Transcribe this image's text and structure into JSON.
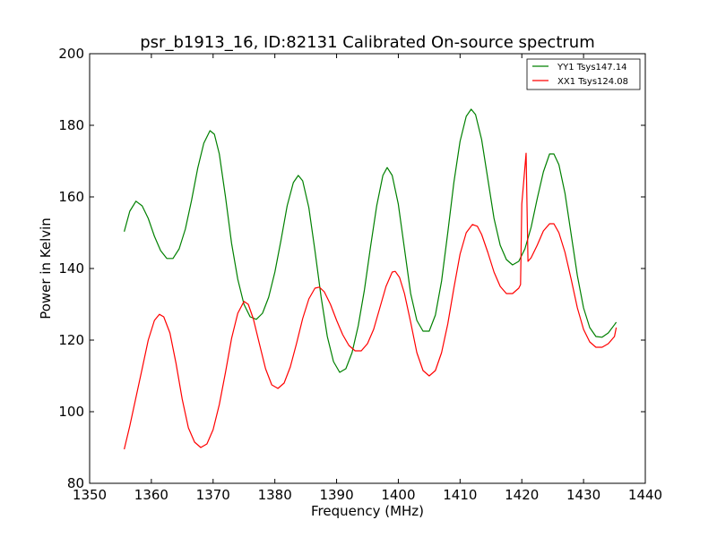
{
  "chart_data": {
    "type": "line",
    "title": "psr_b1913_16, ID:82131 Calibrated On-source spectrum",
    "xlabel": "Frequency (MHz)",
    "ylabel": "Power in Kelvin",
    "xlim": [
      1350,
      1440
    ],
    "ylim": [
      80,
      200
    ],
    "xticks": [
      1350,
      1360,
      1370,
      1380,
      1390,
      1400,
      1410,
      1420,
      1430,
      1440
    ],
    "yticks": [
      80,
      100,
      120,
      140,
      160,
      180,
      200
    ],
    "grid": false,
    "legend_position": "top-right",
    "series": [
      {
        "name": "YY1 Tsys147.14",
        "color": "#008000",
        "points": [
          [
            1355.6,
            150.3
          ],
          [
            1356.5,
            156.0
          ],
          [
            1357.5,
            158.8
          ],
          [
            1358.5,
            157.5
          ],
          [
            1359.5,
            154.0
          ],
          [
            1360.5,
            149.0
          ],
          [
            1361.5,
            145.0
          ],
          [
            1362.5,
            142.8
          ],
          [
            1363.5,
            142.8
          ],
          [
            1364.5,
            145.5
          ],
          [
            1365.5,
            151.0
          ],
          [
            1366.5,
            159.0
          ],
          [
            1367.5,
            168.0
          ],
          [
            1368.5,
            175.0
          ],
          [
            1369.5,
            178.5
          ],
          [
            1370.2,
            177.5
          ],
          [
            1371.0,
            172.0
          ],
          [
            1372.0,
            160.0
          ],
          [
            1373.0,
            147.0
          ],
          [
            1374.0,
            137.0
          ],
          [
            1375.0,
            130.0
          ],
          [
            1376.0,
            126.5
          ],
          [
            1377.0,
            125.8
          ],
          [
            1378.0,
            127.5
          ],
          [
            1379.0,
            132.0
          ],
          [
            1380.0,
            139.0
          ],
          [
            1381.0,
            148.0
          ],
          [
            1382.0,
            157.5
          ],
          [
            1383.0,
            164.0
          ],
          [
            1383.8,
            166.0
          ],
          [
            1384.5,
            164.5
          ],
          [
            1385.5,
            157.0
          ],
          [
            1386.5,
            145.0
          ],
          [
            1387.5,
            132.0
          ],
          [
            1388.5,
            121.0
          ],
          [
            1389.5,
            114.0
          ],
          [
            1390.5,
            111.0
          ],
          [
            1391.5,
            112.0
          ],
          [
            1392.5,
            116.5
          ],
          [
            1393.5,
            124.0
          ],
          [
            1394.5,
            134.0
          ],
          [
            1395.5,
            146.0
          ],
          [
            1396.5,
            157.5
          ],
          [
            1397.5,
            166.0
          ],
          [
            1398.2,
            168.2
          ],
          [
            1399.0,
            166.0
          ],
          [
            1400.0,
            158.0
          ],
          [
            1401.0,
            145.5
          ],
          [
            1402.0,
            133.0
          ],
          [
            1403.0,
            125.5
          ],
          [
            1404.0,
            122.5
          ],
          [
            1405.0,
            122.5
          ],
          [
            1406.0,
            127.0
          ],
          [
            1407.0,
            136.5
          ],
          [
            1408.0,
            150.0
          ],
          [
            1409.0,
            164.0
          ],
          [
            1410.0,
            175.5
          ],
          [
            1411.0,
            182.5
          ],
          [
            1411.8,
            184.5
          ],
          [
            1412.5,
            183.0
          ],
          [
            1413.5,
            176.0
          ],
          [
            1414.5,
            165.0
          ],
          [
            1415.5,
            154.0
          ],
          [
            1416.5,
            146.5
          ],
          [
            1417.5,
            142.5
          ],
          [
            1418.5,
            141.0
          ],
          [
            1419.5,
            142.0
          ],
          [
            1420.5,
            145.5
          ],
          [
            1421.5,
            151.5
          ],
          [
            1422.5,
            159.5
          ],
          [
            1423.5,
            167.0
          ],
          [
            1424.5,
            172.0
          ],
          [
            1425.2,
            172.0
          ],
          [
            1426.0,
            169.0
          ],
          [
            1427.0,
            161.0
          ],
          [
            1428.0,
            149.5
          ],
          [
            1429.0,
            138.0
          ],
          [
            1430.0,
            129.0
          ],
          [
            1431.0,
            123.5
          ],
          [
            1432.0,
            121.0
          ],
          [
            1433.0,
            120.8
          ],
          [
            1434.0,
            122.0
          ],
          [
            1435.0,
            124.3
          ],
          [
            1435.3,
            125.0
          ]
        ]
      },
      {
        "name": "XX1 Tsys124.08",
        "color": "#ff0000",
        "points": [
          [
            1355.6,
            89.5
          ],
          [
            1356.5,
            96.0
          ],
          [
            1357.5,
            104.0
          ],
          [
            1358.5,
            112.0
          ],
          [
            1359.5,
            120.0
          ],
          [
            1360.5,
            125.5
          ],
          [
            1361.3,
            127.2
          ],
          [
            1362.0,
            126.5
          ],
          [
            1363.0,
            122.0
          ],
          [
            1364.0,
            113.5
          ],
          [
            1365.0,
            103.5
          ],
          [
            1366.0,
            95.5
          ],
          [
            1367.0,
            91.5
          ],
          [
            1368.0,
            90.0
          ],
          [
            1369.0,
            91.0
          ],
          [
            1370.0,
            95.0
          ],
          [
            1371.0,
            102.0
          ],
          [
            1372.0,
            111.0
          ],
          [
            1373.0,
            120.5
          ],
          [
            1374.0,
            127.5
          ],
          [
            1375.0,
            130.8
          ],
          [
            1375.7,
            130.0
          ],
          [
            1376.5,
            126.0
          ],
          [
            1377.5,
            119.0
          ],
          [
            1378.5,
            112.0
          ],
          [
            1379.5,
            107.5
          ],
          [
            1380.5,
            106.5
          ],
          [
            1381.5,
            108.0
          ],
          [
            1382.5,
            112.5
          ],
          [
            1383.5,
            119.0
          ],
          [
            1384.5,
            126.0
          ],
          [
            1385.5,
            131.5
          ],
          [
            1386.5,
            134.5
          ],
          [
            1387.2,
            134.8
          ],
          [
            1388.0,
            133.5
          ],
          [
            1389.0,
            130.0
          ],
          [
            1390.0,
            125.5
          ],
          [
            1391.0,
            121.5
          ],
          [
            1392.0,
            118.5
          ],
          [
            1393.0,
            117.0
          ],
          [
            1394.0,
            117.0
          ],
          [
            1395.0,
            119.0
          ],
          [
            1396.0,
            123.0
          ],
          [
            1397.0,
            129.0
          ],
          [
            1398.0,
            135.0
          ],
          [
            1399.0,
            139.0
          ],
          [
            1399.5,
            139.2
          ],
          [
            1400.2,
            137.5
          ],
          [
            1401.0,
            133.0
          ],
          [
            1402.0,
            125.0
          ],
          [
            1403.0,
            116.5
          ],
          [
            1404.0,
            111.5
          ],
          [
            1405.0,
            110.0
          ],
          [
            1406.0,
            111.5
          ],
          [
            1407.0,
            116.5
          ],
          [
            1408.0,
            124.5
          ],
          [
            1409.0,
            134.5
          ],
          [
            1410.0,
            144.0
          ],
          [
            1411.0,
            150.0
          ],
          [
            1412.0,
            152.3
          ],
          [
            1412.8,
            151.8
          ],
          [
            1413.5,
            149.5
          ],
          [
            1414.5,
            144.5
          ],
          [
            1415.5,
            139.0
          ],
          [
            1416.5,
            135.0
          ],
          [
            1417.5,
            133.0
          ],
          [
            1418.5,
            133.0
          ],
          [
            1419.5,
            134.5
          ],
          [
            1419.8,
            135.5
          ],
          [
            1420.0,
            158.0
          ],
          [
            1420.7,
            172.2
          ],
          [
            1421.0,
            142.0
          ],
          [
            1421.5,
            143.0
          ],
          [
            1422.5,
            146.5
          ],
          [
            1423.5,
            150.5
          ],
          [
            1424.5,
            152.5
          ],
          [
            1425.2,
            152.5
          ],
          [
            1426.0,
            150.0
          ],
          [
            1427.0,
            144.5
          ],
          [
            1428.0,
            137.0
          ],
          [
            1429.0,
            129.0
          ],
          [
            1430.0,
            123.0
          ],
          [
            1431.0,
            119.5
          ],
          [
            1432.0,
            118.0
          ],
          [
            1433.0,
            118.0
          ],
          [
            1434.0,
            119.0
          ],
          [
            1435.0,
            121.0
          ],
          [
            1435.3,
            123.5
          ]
        ]
      }
    ]
  }
}
